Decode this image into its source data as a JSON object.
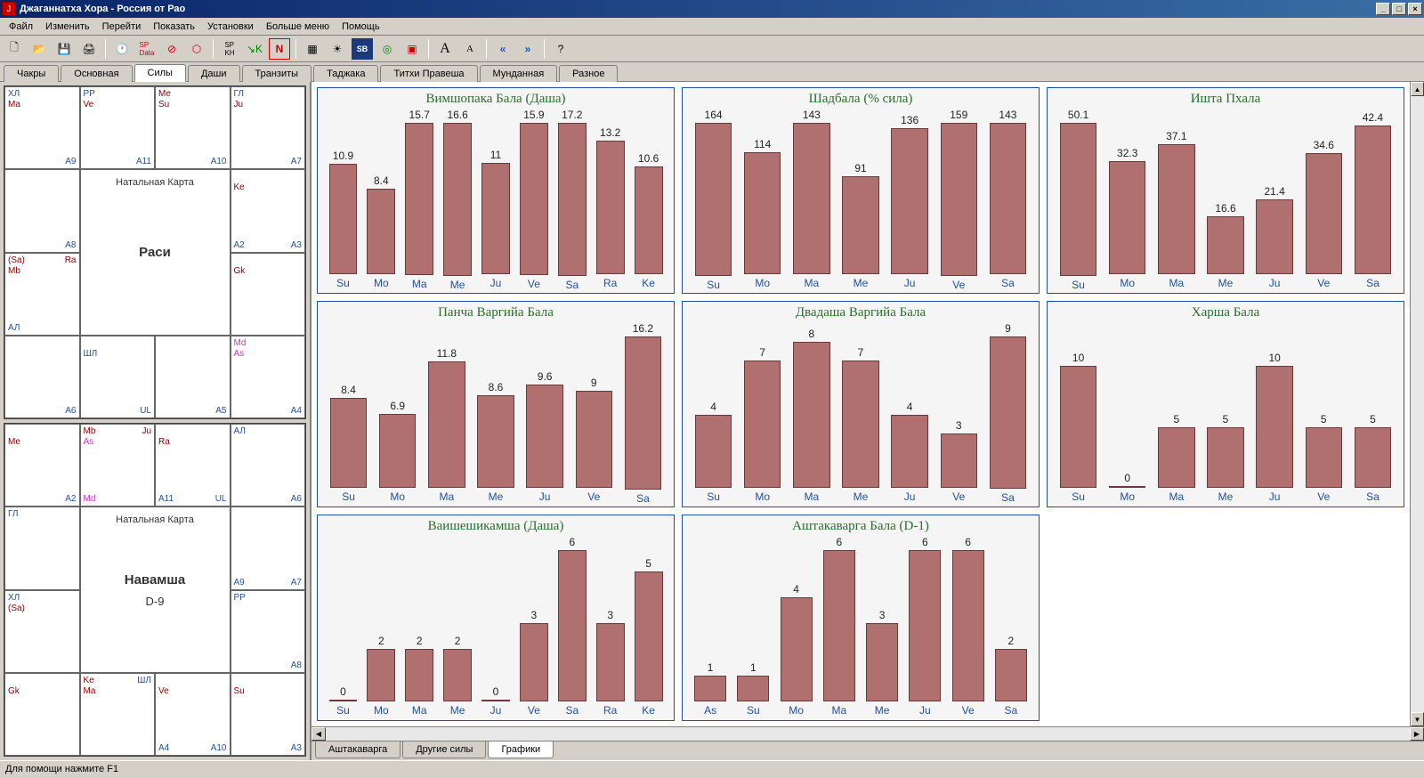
{
  "app": {
    "title": "Джаганнатха Хора - Россия от Рао"
  },
  "menu": [
    "Файл",
    "Изменить",
    "Перейти",
    "Показать",
    "Установки",
    "Больше меню",
    "Помощь"
  ],
  "tabs_top": [
    "Чакры",
    "Основная",
    "Силы",
    "Даши",
    "Транзиты",
    "Таджака",
    "Титхи Правеша",
    "Мунданная",
    "Разное"
  ],
  "tabs_top_active": 2,
  "tabs_bottom": [
    "Аштакаварга",
    "Другие силы",
    "Графики"
  ],
  "tabs_bottom_active": 2,
  "statusbar": "Для помощи нажмите F1",
  "natal1": {
    "top_label": "Натальная Карта",
    "main_label": "Раси",
    "cells": {
      "c0": {
        "tl": "ХЛ",
        "br": "A9",
        "mid": "Ma"
      },
      "c1a": {
        "tl": "PP",
        "br": "A11",
        "mid": "Ve"
      },
      "c1b": {
        "br": "A10",
        "tl_red": "Me",
        "mid": "Su"
      },
      "c2": {
        "tl": "ГЛ",
        "br": "A7",
        "mid": "Ju"
      },
      "c3": {
        "br": "A8"
      },
      "c4": {
        "mid": "Ke",
        "br": "A3",
        "bl": "A2"
      },
      "c5": {
        "tl_red": "(Sa)",
        "mid": "Mb",
        "bl_blue": "АЛ",
        "tr": "Ra"
      },
      "c6": {
        "mid": "Gk"
      },
      "c7": {
        "br": "A6"
      },
      "c8a": {
        "mid_blue": "ШЛ",
        "br": "UL"
      },
      "c8b": {
        "br": "A5"
      },
      "c9": {
        "tl_pink": "Md",
        "mid_pink": "As",
        "br": "A4"
      }
    }
  },
  "natal2": {
    "top_label": "Натальная Карта",
    "main_label": "Навамша",
    "sub_label": "D-9",
    "cells": {
      "c0": {
        "mid": "Me",
        "br": "A2"
      },
      "c1a": {
        "tl_red": "Mb",
        "mid_pink": "As",
        "bl_pink": "Md",
        "tr": "Ju"
      },
      "c1b": {
        "mid": "Ra",
        "br": "UL",
        "tr": "",
        "bl": "A11"
      },
      "c2": {
        "tl": "АЛ",
        "br": "A6"
      },
      "c3": {
        "tl": "ГЛ"
      },
      "c4": {
        "br": "A7",
        "bl": "A9"
      },
      "c5": {
        "tl": "ХЛ",
        "mid": "(Sa)"
      },
      "c6": {
        "tl": "PP",
        "br": "A8"
      },
      "c7": {
        "mid": "Gk"
      },
      "c8a": {
        "tl_red": "Ke",
        "mid": "Ma",
        "tr_blue": "ШЛ"
      },
      "c8b": {
        "mid": "Ve",
        "bl": "A4",
        "br": "A10"
      },
      "c9": {
        "mid": "Su",
        "br": "A3"
      }
    }
  },
  "charts": [
    {
      "title": "Вимшопака Бала (Даша)",
      "bar_color": "#b07070",
      "labels": [
        "Su",
        "Mo",
        "Ma",
        "Me",
        "Ju",
        "Ve",
        "Sa",
        "Ra",
        "Ke"
      ],
      "values": [
        10.9,
        8.4,
        15.7,
        16.6,
        11.0,
        15.9,
        17.2,
        13.2,
        10.6
      ],
      "max": 18
    },
    {
      "title": "Шадбала (% сила)",
      "bar_color": "#b07070",
      "labels": [
        "Su",
        "Mo",
        "Ma",
        "Me",
        "Ju",
        "Ve",
        "Sa"
      ],
      "values": [
        164,
        114,
        143,
        91,
        136,
        159,
        143
      ],
      "max": 170
    },
    {
      "title": "Ишта Пхала",
      "bar_color": "#b07070",
      "labels": [
        "Su",
        "Mo",
        "Ma",
        "Me",
        "Ju",
        "Ve",
        "Sa"
      ],
      "values": [
        50.1,
        32.3,
        37.1,
        16.6,
        21.4,
        34.6,
        42.4
      ],
      "max": 52
    },
    {
      "title": "Панча Варгийа Бала",
      "bar_color": "#b07070",
      "labels": [
        "Su",
        "Mo",
        "Ma",
        "Me",
        "Ju",
        "Ve",
        "Sa"
      ],
      "values": [
        8.4,
        6.9,
        11.8,
        8.6,
        9.6,
        9.0,
        16.2
      ],
      "max": 17
    },
    {
      "title": "Двадаша Варгийа Бала",
      "bar_color": "#b07070",
      "labels": [
        "Su",
        "Mo",
        "Ma",
        "Me",
        "Ju",
        "Ve",
        "Sa"
      ],
      "values": [
        4,
        7,
        8,
        7,
        4,
        3,
        9
      ],
      "max": 10
    },
    {
      "title": "Харша Бала",
      "bar_color": "#b07070",
      "labels": [
        "Su",
        "Mo",
        "Ma",
        "Me",
        "Ju",
        "Ve",
        "Sa"
      ],
      "values": [
        10,
        0,
        5,
        5,
        10,
        5,
        5
      ],
      "max": 15
    },
    {
      "title": "Ваишешикамша (Даша)",
      "bar_color": "#b07070",
      "labels": [
        "Su",
        "Mo",
        "Ma",
        "Me",
        "Ju",
        "Ve",
        "Sa",
        "Ra",
        "Ke"
      ],
      "values": [
        0,
        2,
        2,
        2,
        0,
        3,
        6,
        3,
        5
      ],
      "max": 7
    },
    {
      "title": "Аштакаварга Бала (D-1)",
      "bar_color": "#b07070",
      "labels": [
        "As",
        "Su",
        "Mo",
        "Ma",
        "Me",
        "Ju",
        "Ve",
        "Sa"
      ],
      "values": [
        1,
        1,
        4,
        6,
        3,
        6,
        6,
        2
      ],
      "max": 7
    }
  ]
}
